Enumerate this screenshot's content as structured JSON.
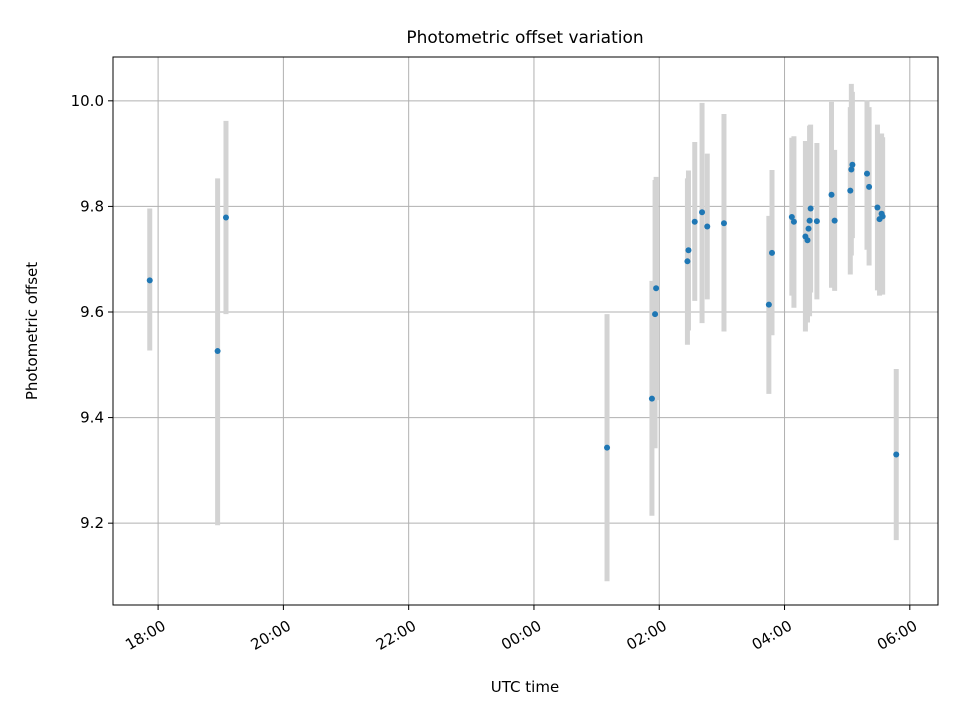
{
  "chart_data": {
    "type": "scatter",
    "title": "Photometric offset variation",
    "xlabel": "UTC time",
    "ylabel": "Photometric offset",
    "x_axis_type": "time",
    "xlim_hours": [
      17.28,
      30.45
    ],
    "ylim": [
      9.045,
      10.083
    ],
    "x_ticks": [
      {
        "label": "18:00",
        "hours": 18
      },
      {
        "label": "20:00",
        "hours": 20
      },
      {
        "label": "22:00",
        "hours": 22
      },
      {
        "label": "00:00",
        "hours": 24
      },
      {
        "label": "02:00",
        "hours": 26
      },
      {
        "label": "04:00",
        "hours": 28
      },
      {
        "label": "06:00",
        "hours": 30
      }
    ],
    "y_ticks": [
      {
        "label": "9.2",
        "value": 9.2
      },
      {
        "label": "9.4",
        "value": 9.4
      },
      {
        "label": "9.6",
        "value": 9.6
      },
      {
        "label": "9.8",
        "value": 9.8
      },
      {
        "label": "10.0",
        "value": 10.0
      }
    ],
    "grid": true,
    "marker_color": "#1f77b4",
    "errorbar_color": "#d3d3d3",
    "points": [
      {
        "time": "17:52",
        "y": 9.66,
        "low": 9.527,
        "high": 9.796
      },
      {
        "time": "18:57",
        "y": 9.526,
        "low": 9.196,
        "high": 9.853
      },
      {
        "time": "19:05",
        "y": 9.779,
        "low": 9.596,
        "high": 9.962
      },
      {
        "time": "01:10",
        "y": 9.343,
        "low": 9.09,
        "high": 9.596
      },
      {
        "time": "01:53",
        "y": 9.436,
        "low": 9.214,
        "high": 9.659
      },
      {
        "time": "01:56",
        "y": 9.596,
        "low": 9.342,
        "high": 9.85
      },
      {
        "time": "01:57",
        "y": 9.645,
        "low": 9.433,
        "high": 9.856
      },
      {
        "time": "02:27",
        "y": 9.696,
        "low": 9.538,
        "high": 9.853
      },
      {
        "time": "02:28",
        "y": 9.717,
        "low": 9.565,
        "high": 9.868
      },
      {
        "time": "02:34",
        "y": 9.771,
        "low": 9.621,
        "high": 9.922
      },
      {
        "time": "02:41",
        "y": 9.789,
        "low": 9.579,
        "high": 9.996
      },
      {
        "time": "02:46",
        "y": 9.762,
        "low": 9.624,
        "high": 9.9
      },
      {
        "time": "03:02",
        "y": 9.768,
        "low": 9.563,
        "high": 9.975
      },
      {
        "time": "03:45",
        "y": 9.614,
        "low": 9.445,
        "high": 9.782
      },
      {
        "time": "03:48",
        "y": 9.712,
        "low": 9.556,
        "high": 9.869
      },
      {
        "time": "04:07",
        "y": 9.78,
        "low": 9.631,
        "high": 9.93
      },
      {
        "time": "04:09",
        "y": 9.771,
        "low": 9.608,
        "high": 9.933
      },
      {
        "time": "04:20",
        "y": 9.743,
        "low": 9.563,
        "high": 9.924
      },
      {
        "time": "04:22",
        "y": 9.736,
        "low": 9.58,
        "high": 9.892
      },
      {
        "time": "04:23",
        "y": 9.758,
        "low": 9.603,
        "high": 9.913
      },
      {
        "time": "04:24",
        "y": 9.773,
        "low": 9.592,
        "high": 9.953
      },
      {
        "time": "04:25",
        "y": 9.796,
        "low": 9.637,
        "high": 9.955
      },
      {
        "time": "04:31",
        "y": 9.772,
        "low": 9.624,
        "high": 9.92
      },
      {
        "time": "04:45",
        "y": 9.822,
        "low": 9.646,
        "high": 9.998
      },
      {
        "time": "04:48",
        "y": 9.773,
        "low": 9.64,
        "high": 9.907
      },
      {
        "time": "05:03",
        "y": 9.83,
        "low": 9.671,
        "high": 9.988
      },
      {
        "time": "05:04",
        "y": 9.87,
        "low": 9.707,
        "high": 10.032
      },
      {
        "time": "05:05",
        "y": 9.879,
        "low": 9.74,
        "high": 10.017
      },
      {
        "time": "05:19",
        "y": 9.862,
        "low": 9.718,
        "high": 10.001
      },
      {
        "time": "05:21",
        "y": 9.837,
        "low": 9.688,
        "high": 9.988
      },
      {
        "time": "05:29",
        "y": 9.798,
        "low": 9.641,
        "high": 9.955
      },
      {
        "time": "05:31",
        "y": 9.776,
        "low": 9.631,
        "high": 9.922
      },
      {
        "time": "05:33",
        "y": 9.786,
        "low": 9.635,
        "high": 9.938
      },
      {
        "time": "05:34",
        "y": 9.781,
        "low": 9.633,
        "high": 9.931
      },
      {
        "time": "05:47",
        "y": 9.33,
        "low": 9.168,
        "high": 9.492
      }
    ]
  }
}
